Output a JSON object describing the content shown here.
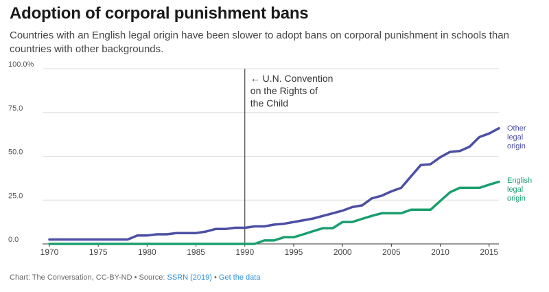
{
  "title": "Adoption of corporal punishment bans",
  "subtitle": "Countries with an English legal origin have been slower to adopt bans on corporal punishment in schools than countries with other backgrounds.",
  "footer": {
    "credit": "Chart: The Conversation, CC-BY-ND",
    "separator": "•",
    "source_label": "Source:",
    "source_link": "SSRN (2019)",
    "data_link": "Get the data"
  },
  "colors": {
    "other": "#4c4fa3",
    "english": "#1a9e6e",
    "grid": "#dddddd",
    "axis": "#333333"
  },
  "chart_data": {
    "type": "line",
    "title": "Adoption of corporal punishment bans",
    "xlabel": "",
    "ylabel": "",
    "xlim": [
      1970,
      2016
    ],
    "ylim": [
      0,
      100
    ],
    "yticks": [
      0,
      25,
      50,
      75,
      100
    ],
    "ytick_labels": [
      "0.0",
      "25.0",
      "50.0",
      "75.0",
      "100.0%"
    ],
    "xticks": [
      1970,
      1975,
      1980,
      1985,
      1990,
      1995,
      2000,
      2005,
      2010,
      2015
    ],
    "grid": true,
    "annotation": {
      "x": 1990,
      "lines": [
        "← U.N. Convention",
        "on the Rights of",
        "the Child"
      ]
    },
    "series": [
      {
        "name": "Other legal origin",
        "label_lines": [
          "Other",
          "legal",
          "origin"
        ],
        "color": "#4c4fa3",
        "x": [
          1970,
          1971,
          1972,
          1973,
          1974,
          1975,
          1976,
          1977,
          1978,
          1979,
          1980,
          1981,
          1982,
          1983,
          1984,
          1985,
          1986,
          1987,
          1988,
          1989,
          1990,
          1991,
          1992,
          1993,
          1994,
          1995,
          1996,
          1997,
          1998,
          1999,
          2000,
          2001,
          2002,
          2003,
          2004,
          2005,
          2006,
          2007,
          2008,
          2009,
          2010,
          2011,
          2012,
          2013,
          2014,
          2015,
          2016
        ],
        "values": [
          2.5,
          2.5,
          2.5,
          2.5,
          2.5,
          2.5,
          2.5,
          2.5,
          2.5,
          4.8,
          4.8,
          5.5,
          5.5,
          6.2,
          6.2,
          6.2,
          7.0,
          8.5,
          8.5,
          9.2,
          9.2,
          10.0,
          10.0,
          11.0,
          11.5,
          12.5,
          13.5,
          14.5,
          16.0,
          17.5,
          19.0,
          21.0,
          22.0,
          26.0,
          27.5,
          30.0,
          32.0,
          38.5,
          45.0,
          45.5,
          49.5,
          52.5,
          53.0,
          55.5,
          61.0,
          63.0,
          66.0
        ]
      },
      {
        "name": "English legal origin",
        "label_lines": [
          "English",
          "legal",
          "origin"
        ],
        "color": "#1a9e6e",
        "x": [
          1970,
          1971,
          1972,
          1973,
          1974,
          1975,
          1976,
          1977,
          1978,
          1979,
          1980,
          1981,
          1982,
          1983,
          1984,
          1985,
          1986,
          1987,
          1988,
          1989,
          1990,
          1991,
          1992,
          1993,
          1994,
          1995,
          1996,
          1997,
          1998,
          1999,
          2000,
          2001,
          2002,
          2003,
          2004,
          2005,
          2006,
          2007,
          2008,
          2009,
          2010,
          2011,
          2012,
          2013,
          2014,
          2015,
          2016
        ],
        "values": [
          0,
          0,
          0,
          0,
          0,
          0,
          0,
          0,
          0,
          0,
          0,
          0,
          0,
          0,
          0,
          0,
          0,
          0,
          0,
          0,
          0,
          0,
          2.0,
          2.0,
          3.8,
          3.8,
          5.5,
          7.3,
          9.0,
          9.0,
          12.5,
          12.5,
          14.3,
          16.0,
          17.5,
          17.5,
          17.5,
          19.5,
          19.5,
          19.5,
          24.5,
          29.5,
          32.0,
          32.0,
          32.0,
          33.8,
          35.5
        ]
      }
    ]
  }
}
